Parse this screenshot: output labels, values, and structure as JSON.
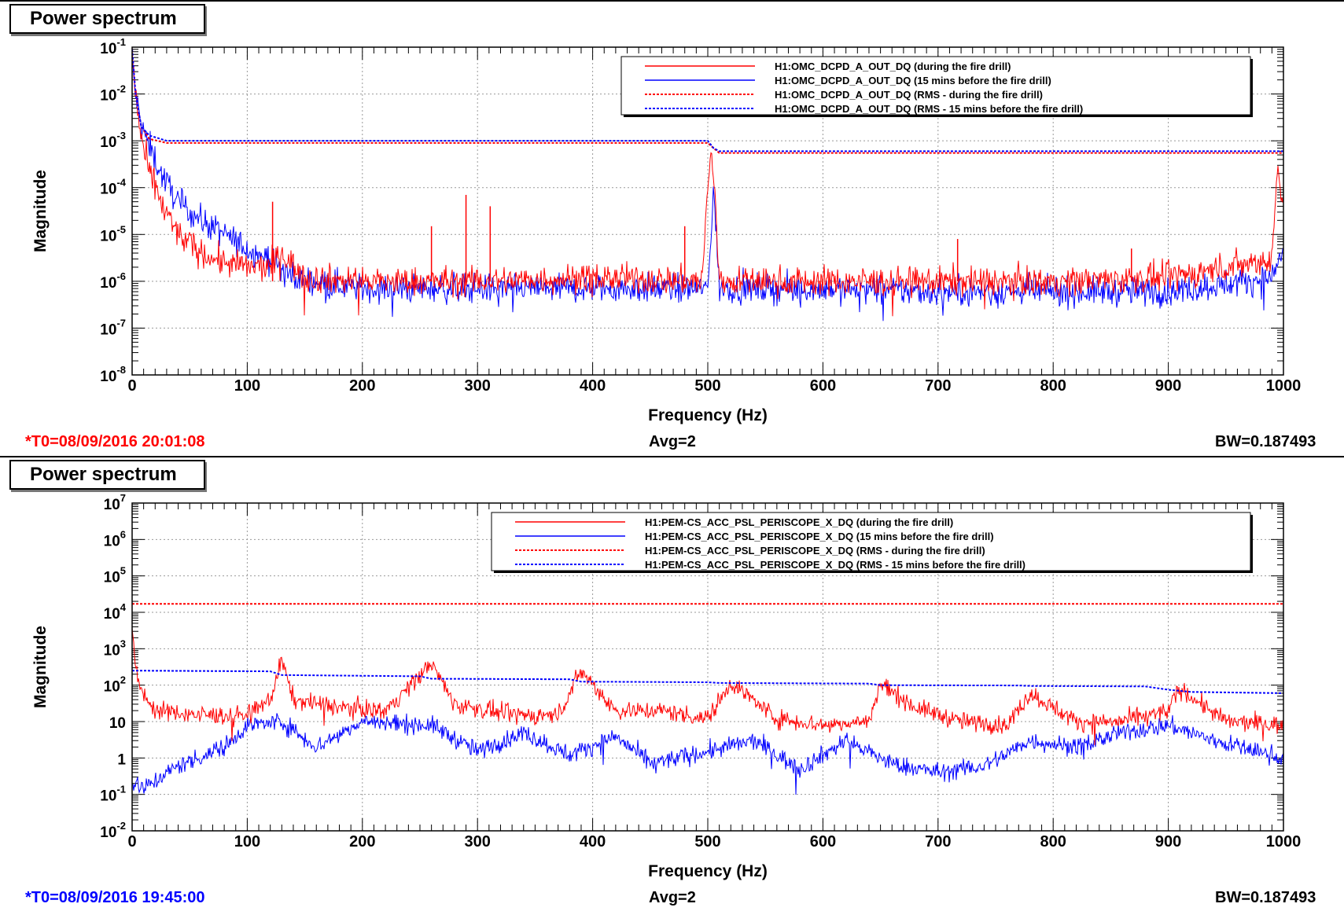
{
  "colors": {
    "red": "#ff0000",
    "blue": "#0000ff",
    "axis": "#000000",
    "grid": "#999999"
  },
  "panels": [
    {
      "title": "Power spectrum",
      "t0": "*T0=08/09/2016 20:01:08",
      "t0_color": "#ff0000",
      "avg": "Avg=2",
      "bw": "BW=0.187493",
      "chart_data": {
        "type": "line",
        "xlabel": "Frequency (Hz)",
        "ylabel": "Magnitude",
        "xlim": [
          0,
          1000
        ],
        "xticks": [
          0,
          100,
          200,
          300,
          400,
          500,
          600,
          700,
          800,
          900,
          1000
        ],
        "ylim_log10": [
          -8,
          -1
        ],
        "yticks_exp": [
          -1,
          -2,
          -3,
          -4,
          -5,
          -6,
          -7,
          -8
        ],
        "y_scale": "log",
        "grid": true,
        "legend_position": "top-right",
        "legend": [
          {
            "label": "H1:OMC_DCPD_A_OUT_DQ (during the fire drill)",
            "color": "#ff0000",
            "style": "solid"
          },
          {
            "label": "H1:OMC_DCPD_A_OUT_DQ (15 mins before the fire drill)",
            "color": "#0000ff",
            "style": "solid"
          },
          {
            "label": "H1:OMC_DCPD_A_OUT_DQ (RMS - during the fire drill)",
            "color": "#ff0000",
            "style": "dotted"
          },
          {
            "label": "H1:OMC_DCPD_A_OUT_DQ (RMS - 15 mins before the fire drill)",
            "color": "#0000ff",
            "style": "dotted"
          }
        ],
        "series": [
          {
            "name": "H1:OMC_DCPD_A_OUT_DQ (during the fire drill)",
            "color": "#ff0000",
            "style": "solid",
            "x": [
              0,
              3,
              8,
              15,
              25,
              40,
              60,
              80,
              100,
              120,
              130,
              150,
              200,
              300,
              400,
              495,
              500,
              503,
              506,
              510,
              520,
              600,
              700,
              800,
              900,
              950,
              990,
              995,
              1000
            ],
            "y": [
              0.08,
              0.01,
              0.001,
              0.0002,
              5e-05,
              1e-05,
              4e-06,
              2.5e-06,
              2e-06,
              2e-06,
              4e-06,
              1.2e-06,
              1e-06,
              1e-06,
              1.2e-06,
              1e-06,
              0.0001,
              0.0005,
              0.0001,
              1e-06,
              1e-06,
              1e-06,
              1e-06,
              1e-06,
              1.2e-06,
              2e-06,
              3e-06,
              0.0003,
              5e-05
            ]
          },
          {
            "name": "H1:OMC_DCPD_A_OUT_DQ (15 mins before the fire drill)",
            "color": "#0000ff",
            "style": "solid",
            "x": [
              0,
              3,
              8,
              15,
              25,
              40,
              60,
              80,
              100,
              120,
              140,
              200,
              300,
              400,
              500,
              505,
              510,
              600,
              700,
              800,
              900,
              990,
              1000
            ],
            "y": [
              0.05,
              0.01,
              0.002,
              0.0008,
              0.0002,
              5e-05,
              2e-05,
              1e-05,
              5e-06,
              3e-06,
              1.2e-06,
              7e-07,
              7e-07,
              7e-07,
              7e-07,
              0.0001,
              7e-07,
              7e-07,
              6e-07,
              6e-07,
              6e-07,
              1.2e-06,
              5e-06
            ]
          },
          {
            "name": "H1:OMC_DCPD_A_OUT_DQ (RMS - during the fire drill)",
            "color": "#ff0000",
            "style": "dotted",
            "x": [
              0,
              3,
              8,
              15,
              30,
              500,
              505,
              510,
              1000
            ],
            "y": [
              0.09,
              0.01,
              0.002,
              0.0011,
              0.0009,
              0.0009,
              0.0007,
              0.00055,
              0.00055
            ]
          },
          {
            "name": "H1:OMC_DCPD_A_OUT_DQ (RMS - 15 mins before the fire drill)",
            "color": "#0000ff",
            "style": "dotted",
            "x": [
              0,
              3,
              8,
              15,
              30,
              500,
              505,
              510,
              1000
            ],
            "y": [
              0.09,
              0.01,
              0.002,
              0.0013,
              0.001,
              0.001,
              0.0007,
              0.0006,
              0.0006
            ]
          }
        ],
        "peaks_red": [
          {
            "x": 122,
            "y": 5e-05
          },
          {
            "x": 260,
            "y": 1.5e-05
          },
          {
            "x": 290,
            "y": 7e-05
          },
          {
            "x": 311,
            "y": 4e-05
          },
          {
            "x": 480,
            "y": 1.5e-05
          },
          {
            "x": 717,
            "y": 8e-06
          },
          {
            "x": 868,
            "y": 5e-06
          }
        ]
      }
    },
    {
      "title": "Power spectrum",
      "t0": "*T0=08/09/2016 19:45:00",
      "t0_color": "#0000ff",
      "avg": "Avg=2",
      "bw": "BW=0.187493",
      "chart_data": {
        "type": "line",
        "xlabel": "Frequency (Hz)",
        "ylabel": "Magnitude",
        "xlim": [
          0,
          1000
        ],
        "xticks": [
          0,
          100,
          200,
          300,
          400,
          500,
          600,
          700,
          800,
          900,
          1000
        ],
        "ylim_log10": [
          -2,
          7
        ],
        "yticks_exp": [
          7,
          6,
          5,
          4,
          3,
          2,
          1,
          0,
          -1,
          -2
        ],
        "ytick_labels": [
          "10^7",
          "10^6",
          "10^5",
          "10^4",
          "10^3",
          "10^2",
          "10",
          "1",
          "10^-1",
          "10^-2"
        ],
        "y_scale": "log",
        "grid": true,
        "legend_position": "top-right",
        "legend": [
          {
            "label": "H1:PEM-CS_ACC_PSL_PERISCOPE_X_DQ (during the fire drill)",
            "color": "#ff0000",
            "style": "solid"
          },
          {
            "label": "H1:PEM-CS_ACC_PSL_PERISCOPE_X_DQ (15 mins before the fire drill)",
            "color": "#0000ff",
            "style": "solid"
          },
          {
            "label": "H1:PEM-CS_ACC_PSL_PERISCOPE_X_DQ (RMS - during the fire drill)",
            "color": "#ff0000",
            "style": "dotted"
          },
          {
            "label": "H1:PEM-CS_ACC_PSL_PERISCOPE_X_DQ (RMS - 15 mins before the fire drill)",
            "color": "#0000ff",
            "style": "dotted"
          }
        ],
        "series": [
          {
            "name": "H1:PEM-CS_ACC_PSL_PERISCOPE_X_DQ (during the fire drill)",
            "color": "#ff0000",
            "style": "solid",
            "x": [
              0,
              5,
              20,
              60,
              100,
              120,
              130,
              140,
              180,
              220,
              260,
              280,
              330,
              370,
              390,
              420,
              460,
              500,
              520,
              560,
              600,
              640,
              650,
              680,
              720,
              760,
              780,
              820,
              860,
              900,
              910,
              950,
              1000
            ],
            "y": [
              3000,
              100,
              20,
              15,
              15,
              40,
              500,
              40,
              25,
              20,
              400,
              30,
              15,
              15,
              250,
              20,
              20,
              12,
              120,
              12,
              8,
              10,
              110,
              25,
              10,
              8,
              60,
              10,
              10,
              20,
              80,
              10,
              8
            ]
          },
          {
            "name": "H1:PEM-CS_ACC_PSL_PERISCOPE_X_DQ (15 mins before the fire drill)",
            "color": "#0000ff",
            "style": "solid",
            "x": [
              0,
              10,
              40,
              80,
              100,
              130,
              160,
              200,
              260,
              300,
              340,
              380,
              420,
              450,
              500,
              540,
              580,
              620,
              660,
              700,
              740,
              780,
              820,
              860,
              900,
              940,
              1000
            ],
            "y": [
              0.2,
              0.15,
              0.6,
              2,
              8,
              10,
              2,
              10,
              8,
              1.5,
              5,
              1.2,
              4,
              0.7,
              1.5,
              3,
              0.5,
              3,
              0.7,
              0.4,
              0.6,
              3,
              2,
              5,
              8,
              3,
              1
            ]
          },
          {
            "name": "H1:PEM-CS_ACC_PSL_PERISCOPE_X_DQ (RMS - during the fire drill)",
            "color": "#ff0000",
            "style": "dotted",
            "x": [
              0,
              1000
            ],
            "y": [
              17000,
              17000
            ]
          },
          {
            "name": "H1:PEM-CS_ACC_PSL_PERISCOPE_X_DQ (RMS - 15 mins before the fire drill)",
            "color": "#0000ff",
            "style": "dotted",
            "x": [
              0,
              120,
              130,
              250,
              260,
              380,
              390,
              500,
              510,
              640,
              650,
              770,
              780,
              880,
              900,
              920,
              1000
            ],
            "y": [
              250,
              240,
              190,
              175,
              150,
              145,
              125,
              120,
              115,
              110,
              100,
              98,
              95,
              92,
              75,
              65,
              60
            ]
          }
        ]
      }
    }
  ]
}
